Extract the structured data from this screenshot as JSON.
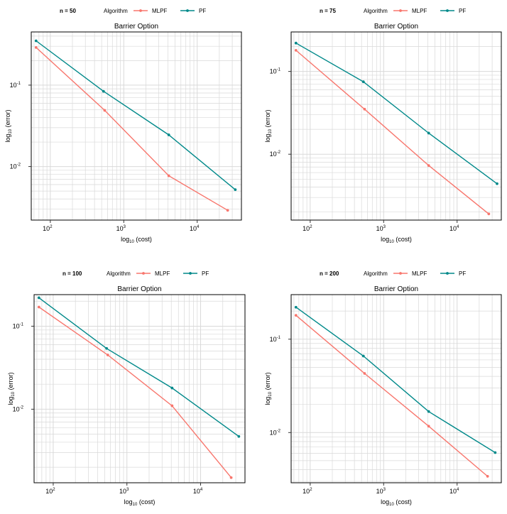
{
  "colors": {
    "MLPF": "#f8766d",
    "PF": "#00898a",
    "grid": "#d9d9d9",
    "panel": "#000000"
  },
  "chart_data": [
    {
      "type": "line",
      "label": "n = 50",
      "title": "Barrier Option",
      "xlabel_main": "log",
      "xlabel_sub": "10",
      "xlabel_rest": " (cost)",
      "ylabel_main": "log",
      "ylabel_sub": "10",
      "ylabel_rest": " (error)",
      "legend_title": "Algorithm",
      "x_ticks": [
        {
          "base": "10",
          "exp": "2",
          "value": 100
        },
        {
          "base": "10",
          "exp": "3",
          "value": 1000
        },
        {
          "base": "10",
          "exp": "4",
          "value": 10000
        }
      ],
      "y_ticks": [
        {
          "base": "10",
          "exp": "-1",
          "value": 0.1
        },
        {
          "base": "10",
          "exp": "-2",
          "value": 0.01
        }
      ],
      "xlim": [
        55,
        40000
      ],
      "ylim": [
        0.0022,
        0.45
      ],
      "series": [
        {
          "name": "MLPF",
          "x": [
            64,
            550,
            4100,
            26000
          ],
          "y": [
            0.29,
            0.049,
            0.0077,
            0.0029
          ]
        },
        {
          "name": "PF",
          "x": [
            64,
            530,
            4100,
            33000
          ],
          "y": [
            0.35,
            0.084,
            0.0245,
            0.0052
          ]
        }
      ]
    },
    {
      "type": "line",
      "label": "n = 75",
      "title": "Barrier Option",
      "xlabel_main": "log",
      "xlabel_sub": "10",
      "xlabel_rest": " (cost)",
      "ylabel_main": "log",
      "ylabel_sub": "10",
      "ylabel_rest": " (error)",
      "legend_title": "Algorithm",
      "x_ticks": [
        {
          "base": "10",
          "exp": "2",
          "value": 100
        },
        {
          "base": "10",
          "exp": "3",
          "value": 1000
        },
        {
          "base": "10",
          "exp": "4",
          "value": 10000
        }
      ],
      "y_ticks": [
        {
          "base": "10",
          "exp": "-1",
          "value": 0.1
        },
        {
          "base": "10",
          "exp": "-2",
          "value": 0.01
        }
      ],
      "xlim": [
        55,
        40000
      ],
      "ylim": [
        0.0016,
        0.3
      ],
      "series": [
        {
          "name": "MLPF",
          "x": [
            64,
            550,
            4100,
            27000
          ],
          "y": [
            0.18,
            0.035,
            0.0073,
            0.0019
          ]
        },
        {
          "name": "PF",
          "x": [
            64,
            530,
            4100,
            35000
          ],
          "y": [
            0.22,
            0.075,
            0.018,
            0.0044
          ]
        }
      ]
    },
    {
      "type": "line",
      "label": "n = 100",
      "title": "Barrier Option",
      "xlabel_main": "log",
      "xlabel_sub": "10",
      "xlabel_rest": " (cost)",
      "ylabel_main": "log",
      "ylabel_sub": "10",
      "ylabel_rest": " (error)",
      "legend_title": "Algorithm",
      "x_ticks": [
        {
          "base": "10",
          "exp": "2",
          "value": 100
        },
        {
          "base": "10",
          "exp": "3",
          "value": 1000
        },
        {
          "base": "10",
          "exp": "4",
          "value": 10000
        }
      ],
      "y_ticks": [
        {
          "base": "10",
          "exp": "-1",
          "value": 0.1
        },
        {
          "base": "10",
          "exp": "-2",
          "value": 0.01
        }
      ],
      "xlim": [
        55,
        40000
      ],
      "ylim": [
        0.0013,
        0.24
      ],
      "series": [
        {
          "name": "MLPF",
          "x": [
            64,
            550,
            4100,
            26000
          ],
          "y": [
            0.17,
            0.045,
            0.011,
            0.0015
          ]
        },
        {
          "name": "PF",
          "x": [
            64,
            530,
            4100,
            33000
          ],
          "y": [
            0.22,
            0.054,
            0.018,
            0.0047
          ]
        }
      ]
    },
    {
      "type": "line",
      "label": "n = 200",
      "title": "Barrier Option",
      "xlabel_main": "log",
      "xlabel_sub": "10",
      "xlabel_rest": " (cost)",
      "ylabel_main": "log",
      "ylabel_sub": "10",
      "ylabel_rest": " (error)",
      "legend_title": "Algorithm",
      "x_ticks": [
        {
          "base": "10",
          "exp": "2",
          "value": 100
        },
        {
          "base": "10",
          "exp": "3",
          "value": 1000
        },
        {
          "base": "10",
          "exp": "4",
          "value": 10000
        }
      ],
      "y_ticks": [
        {
          "base": "10",
          "exp": "-1",
          "value": 0.1
        },
        {
          "base": "10",
          "exp": "-2",
          "value": 0.01
        }
      ],
      "xlim": [
        55,
        40000
      ],
      "ylim": [
        0.0029,
        0.3
      ],
      "series": [
        {
          "name": "MLPF",
          "x": [
            64,
            550,
            4100,
            26000
          ],
          "y": [
            0.18,
            0.043,
            0.0117,
            0.0034
          ]
        },
        {
          "name": "PF",
          "x": [
            64,
            530,
            4100,
            33000
          ],
          "y": [
            0.22,
            0.066,
            0.0168,
            0.0061
          ]
        }
      ]
    }
  ]
}
